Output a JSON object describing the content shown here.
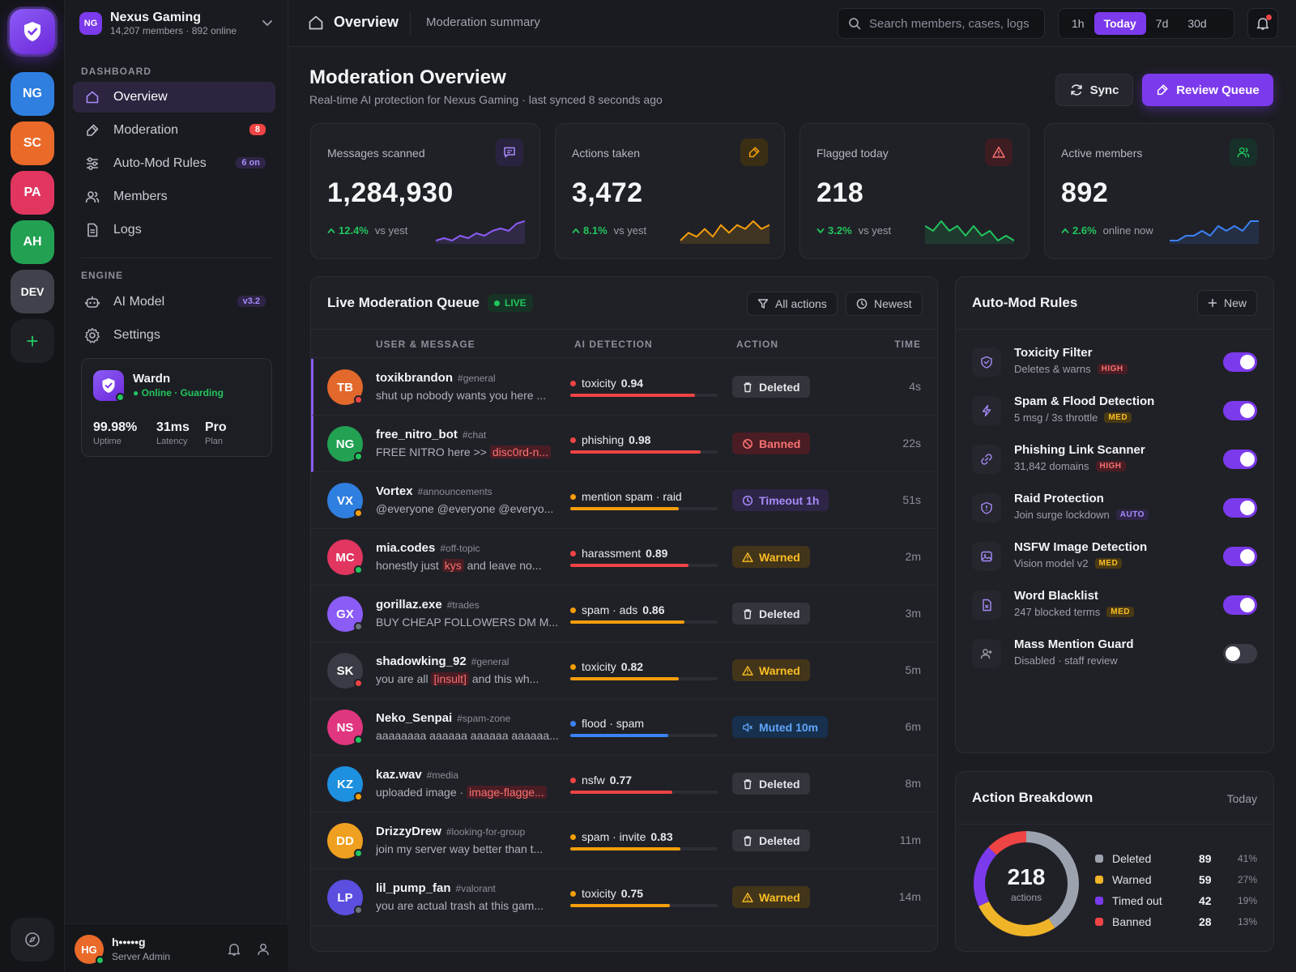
{
  "rail": {
    "servers": [
      {
        "initials": "NG",
        "color": "#2f7fe0"
      },
      {
        "initials": "SC",
        "color": "#ea6a2a"
      },
      {
        "initials": "PA",
        "color": "#e0365f"
      },
      {
        "initials": "AH",
        "color": "#22a152"
      },
      {
        "initials": "DEV",
        "color": "#40424b"
      }
    ],
    "add_label": "+"
  },
  "guild": {
    "badge": "NG",
    "name": "Nexus Gaming",
    "meta": "14,207 members · 892 online"
  },
  "nav": {
    "dashboard_heading": "DASHBOARD",
    "engine_heading": "ENGINE",
    "items": [
      {
        "label": "Overview",
        "icon": "home-icon"
      },
      {
        "label": "Moderation",
        "icon": "hammer-icon",
        "badge": "8"
      },
      {
        "label": "Auto-Mod Rules",
        "icon": "sliders-icon",
        "pill": "6 on"
      },
      {
        "label": "Members",
        "icon": "users-icon"
      },
      {
        "label": "Logs",
        "icon": "file-icon"
      },
      {
        "label": "AI Model",
        "icon": "bot-icon",
        "pill": "v3.2"
      },
      {
        "label": "Settings",
        "icon": "gear-icon"
      }
    ]
  },
  "bot": {
    "name": "Wardn",
    "status": "Online · Guarding",
    "stats": [
      {
        "value": "99.98%",
        "label": "Uptime"
      },
      {
        "value": "31ms",
        "label": "Latency"
      },
      {
        "value": "Pro",
        "label": "Plan"
      }
    ]
  },
  "user": {
    "initials": "HG",
    "name": "h•••••g",
    "role": "Server Admin"
  },
  "topbar": {
    "title": "Overview",
    "subtitle": "Moderation summary",
    "search_placeholder": "Search members, cases, logs",
    "ranges": [
      "1h",
      "Today",
      "7d",
      "30d"
    ],
    "active_range": "Today"
  },
  "header": {
    "title": "Moderation Overview",
    "subtitle": "Real-time AI protection for Nexus Gaming · last synced 8 seconds ago",
    "sync_label": "Sync",
    "review_label": "Review Queue"
  },
  "stats": [
    {
      "label": "Messages scanned",
      "value": "1,284,930",
      "delta": "12.4%",
      "delta_label": "vs yest",
      "icon": "message-icon",
      "color": "#8b5cf6",
      "trend": "up",
      "spark": [
        4,
        5,
        4,
        6,
        5,
        7,
        6,
        8,
        9,
        8,
        11,
        12
      ]
    },
    {
      "label": "Actions taken",
      "value": "3,472",
      "delta": "8.1%",
      "delta_label": "vs yest",
      "icon": "hammer-icon",
      "color": "#f59e0b",
      "trend": "up",
      "spark": [
        4,
        6,
        5,
        7,
        5,
        8,
        6,
        8,
        7,
        9,
        7,
        8
      ]
    },
    {
      "label": "Flagged today",
      "value": "218",
      "delta": "3.2%",
      "delta_label": "vs yest",
      "icon": "alert-icon",
      "color": "#22c55e",
      "trend": "down",
      "spark": [
        9,
        8,
        10,
        8,
        9,
        7,
        9,
        7,
        8,
        6,
        7,
        6
      ]
    },
    {
      "label": "Active members",
      "value": "892",
      "delta": "2.6%",
      "delta_label": "online now",
      "icon": "users-icon",
      "color": "#3b82f6",
      "trend": "up",
      "spark": [
        5,
        5,
        6,
        6,
        7,
        6,
        8,
        7,
        8,
        7,
        9,
        9
      ]
    }
  ],
  "queue": {
    "title": "Live Moderation Queue",
    "live_label": "LIVE",
    "filter_label": "All actions",
    "sort_label": "Newest",
    "columns": [
      "USER & MESSAGE",
      "AI DETECTION",
      "ACTION",
      "TIME"
    ],
    "rows": [
      {
        "initials": "TB",
        "av": "#e2682c",
        "status": "#ef4444",
        "user": "toxikbrandon",
        "channel": "#general",
        "msg_pre": "shut up nobody wants you here ...",
        "msg_hl": "",
        "msg_post": "",
        "det_label": "toxicity",
        "det_score": "0.94",
        "det_color": "#ef4444",
        "det_fill": 0.94,
        "action": "Deleted",
        "action_kind": "deleted",
        "time": "4s",
        "flag": true
      },
      {
        "initials": "NG",
        "av": "#22a152",
        "status": "#22c55e",
        "user": "free_nitro_bot",
        "channel": "#chat",
        "msg_pre": "FREE NITRO here >> ",
        "msg_hl": "disc0rd-n...",
        "msg_post": "",
        "det_label": "phishing",
        "det_score": "0.98",
        "det_color": "#ef4444",
        "det_fill": 0.98,
        "action": "Banned",
        "action_kind": "banned",
        "time": "22s",
        "flag": true
      },
      {
        "initials": "VX",
        "av": "#2f7fe0",
        "status": "#f59e0b",
        "user": "Vortex",
        "channel": "#announcements",
        "msg_pre": "@everyone @everyone @everyo...",
        "msg_hl": "",
        "msg_post": "",
        "det_label": "mention spam · raid",
        "det_score": "",
        "det_color": "#f59e0b",
        "det_fill": 0.82,
        "action": "Timeout 1h",
        "action_kind": "timeout",
        "time": "51s",
        "flag": false
      },
      {
        "initials": "MC",
        "av": "#e0365f",
        "status": "#22c55e",
        "user": "mia.codes",
        "channel": "#off-topic",
        "msg_pre": "honestly just ",
        "msg_hl": "kys",
        "msg_post": " and leave no...",
        "det_label": "harassment",
        "det_score": "0.89",
        "det_color": "#ef4444",
        "det_fill": 0.89,
        "action": "Warned",
        "action_kind": "warned",
        "time": "2m",
        "flag": false
      },
      {
        "initials": "GX",
        "av": "#8b5cf6",
        "status": "#6b7280",
        "user": "gorillaz.exe",
        "channel": "#trades",
        "msg_pre": "BUY CHEAP FOLLOWERS DM M...",
        "msg_hl": "",
        "msg_post": "",
        "det_label": "spam · ads",
        "det_score": "0.86",
        "det_color": "#f59e0b",
        "det_fill": 0.86,
        "action": "Deleted",
        "action_kind": "deleted",
        "time": "3m",
        "flag": false
      },
      {
        "initials": "SK",
        "av": "#3a3b44",
        "status": "#ef4444",
        "user": "shadowking_92",
        "channel": "#general",
        "msg_pre": "you are all ",
        "msg_hl": "[insult]",
        "msg_post": " and this wh...",
        "det_label": "toxicity",
        "det_score": "0.82",
        "det_color": "#f59e0b",
        "det_fill": 0.82,
        "action": "Warned",
        "action_kind": "warned",
        "time": "5m",
        "flag": false
      },
      {
        "initials": "NS",
        "av": "#e0367f",
        "status": "#22c55e",
        "user": "Neko_Senpai",
        "channel": "#spam-zone",
        "msg_pre": "aaaaaaaa aaaaaa aaaaaa aaaaaa...",
        "msg_hl": "",
        "msg_post": "",
        "det_label": "flood · spam",
        "det_score": "",
        "det_color": "#3b82f6",
        "det_fill": 0.74,
        "action": "Muted 10m",
        "action_kind": "muted",
        "time": "6m",
        "flag": false
      },
      {
        "initials": "KZ",
        "av": "#1e90e0",
        "status": "#f59e0b",
        "user": "kaz.wav",
        "channel": "#media",
        "msg_pre": "uploaded image · ",
        "msg_hl": "image-flagge...",
        "msg_post": "",
        "det_label": "nsfw",
        "det_score": "0.77",
        "det_color": "#ef4444",
        "det_fill": 0.77,
        "action": "Deleted",
        "action_kind": "deleted",
        "time": "8m",
        "flag": false
      },
      {
        "initials": "DD",
        "av": "#f0a020",
        "status": "#22c55e",
        "user": "DrizzyDrew",
        "channel": "#looking-for-group",
        "msg_pre": "join my server way better than t...",
        "msg_hl": "",
        "msg_post": "",
        "det_label": "spam · invite",
        "det_score": "0.83",
        "det_color": "#f59e0b",
        "det_fill": 0.83,
        "action": "Deleted",
        "action_kind": "deleted",
        "time": "11m",
        "flag": false
      },
      {
        "initials": "LP",
        "av": "#5b4fe0",
        "status": "#6b7280",
        "user": "lil_pump_fan",
        "channel": "#valorant",
        "msg_pre": "you are actual trash at this gam...",
        "msg_hl": "",
        "msg_post": "",
        "det_label": "toxicity",
        "det_score": "0.75",
        "det_color": "#f59e0b",
        "det_fill": 0.75,
        "action": "Warned",
        "action_kind": "warned",
        "time": "14m",
        "flag": false
      }
    ]
  },
  "rules": {
    "title": "Auto-Mod Rules",
    "new_label": "New",
    "items": [
      {
        "name": "Toxicity Filter",
        "desc": "Deletes & warns",
        "severity": "HIGH",
        "sev": "high",
        "icon": "shield-icon",
        "on": true
      },
      {
        "name": "Spam & Flood Detection",
        "desc": "5 msg / 3s throttle",
        "severity": "MED",
        "sev": "med",
        "icon": "bolt-icon",
        "on": true
      },
      {
        "name": "Phishing Link Scanner",
        "desc": "31,842 domains",
        "severity": "HIGH",
        "sev": "high",
        "icon": "link-icon",
        "on": true
      },
      {
        "name": "Raid Protection",
        "desc": "Join surge lockdown",
        "severity": "AUTO",
        "sev": "auto",
        "icon": "shield-alert-icon",
        "on": true
      },
      {
        "name": "NSFW Image Detection",
        "desc": "Vision model v2",
        "severity": "MED",
        "sev": "med",
        "icon": "image-icon",
        "on": true
      },
      {
        "name": "Word Blacklist",
        "desc": "247 blocked terms",
        "severity": "MED",
        "sev": "med",
        "icon": "file-icon",
        "on": true
      },
      {
        "name": "Mass Mention Guard",
        "desc": "Disabled · staff review",
        "severity": "",
        "sev": "",
        "icon": "user-plus-icon",
        "on": false
      }
    ]
  },
  "breakdown": {
    "title": "Action Breakdown",
    "period": "Today",
    "total": "218",
    "total_label": "actions",
    "items": [
      {
        "label": "Deleted",
        "count": "89",
        "pct": "41%",
        "color": "#9ca3af",
        "value": 89
      },
      {
        "label": "Warned",
        "count": "59",
        "pct": "27%",
        "color": "#f0b429",
        "value": 59
      },
      {
        "label": "Timed out",
        "count": "42",
        "pct": "19%",
        "color": "#7c3aed",
        "value": 42
      },
      {
        "label": "Banned",
        "count": "28",
        "pct": "13%",
        "color": "#ef4444",
        "value": 28
      }
    ]
  }
}
